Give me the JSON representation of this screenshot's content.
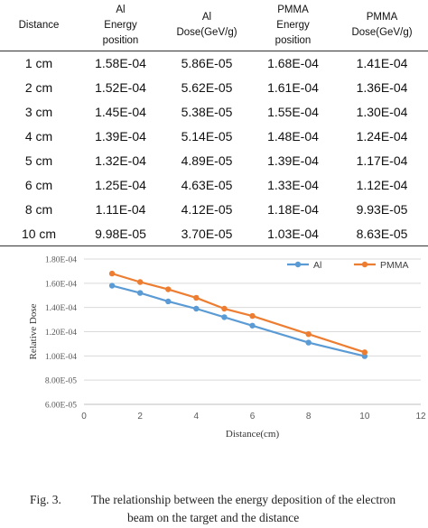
{
  "table": {
    "header": [
      [
        "Distance"
      ],
      [
        "Al",
        "Energy",
        "position"
      ],
      [
        "Al",
        "Dose(GeV/g)"
      ],
      [
        "PMMA",
        "Energy",
        "position"
      ],
      [
        "PMMA",
        "Dose(GeV/g)"
      ]
    ],
    "rows": [
      [
        "1 cm",
        "1.58E-04",
        "5.86E-05",
        "1.68E-04",
        "1.41E-04"
      ],
      [
        "2 cm",
        "1.52E-04",
        "5.62E-05",
        "1.61E-04",
        "1.36E-04"
      ],
      [
        "3 cm",
        "1.45E-04",
        "5.38E-05",
        "1.55E-04",
        "1.30E-04"
      ],
      [
        "4 cm",
        "1.39E-04",
        "5.14E-05",
        "1.48E-04",
        "1.24E-04"
      ],
      [
        "5 cm",
        "1.32E-04",
        "4.89E-05",
        "1.39E-04",
        "1.17E-04"
      ],
      [
        "6 cm",
        "1.25E-04",
        "4.63E-05",
        "1.33E-04",
        "1.12E-04"
      ],
      [
        "8 cm",
        "1.11E-04",
        "4.12E-05",
        "1.18E-04",
        "9.93E-05"
      ],
      [
        "10 cm",
        "9.98E-05",
        "3.70E-05",
        "1.03E-04",
        "8.63E-05"
      ]
    ]
  },
  "chart_data": {
    "type": "line",
    "title": "",
    "xlabel": "Distance(cm)",
    "ylabel": "Relative Dose",
    "xlim": [
      0,
      12
    ],
    "ylim": [
      6e-05,
      0.00018
    ],
    "x_ticks": [
      0,
      2,
      4,
      6,
      8,
      10,
      12
    ],
    "y_ticks": [
      6e-05,
      8e-05,
      0.0001,
      0.00012,
      0.00014,
      0.00016,
      0.00018
    ],
    "y_tick_labels": [
      "6.00E-05",
      "8.00E-05",
      "1.00E-04",
      "1.20E-04",
      "1.40E-04",
      "1.60E-04",
      "1.80E-04"
    ],
    "grid": "horizontal",
    "legend": "top-right",
    "series": [
      {
        "name": "Al",
        "color": "#5B9BD5",
        "x": [
          1,
          2,
          3,
          4,
          5,
          6,
          8,
          10
        ],
        "y": [
          0.000158,
          0.000152,
          0.000145,
          0.000139,
          0.000132,
          0.000125,
          0.000111,
          9.98e-05
        ]
      },
      {
        "name": "PMMA",
        "color": "#ED7D31",
        "x": [
          1,
          2,
          3,
          4,
          5,
          6,
          8,
          10
        ],
        "y": [
          0.000168,
          0.000161,
          0.000155,
          0.000148,
          0.000139,
          0.000133,
          0.000118,
          0.000103
        ]
      }
    ]
  },
  "caption": {
    "label": "Fig. 3.",
    "line1": "The relationship between the energy deposition of the electron",
    "line2": "beam on the target and the distance"
  }
}
